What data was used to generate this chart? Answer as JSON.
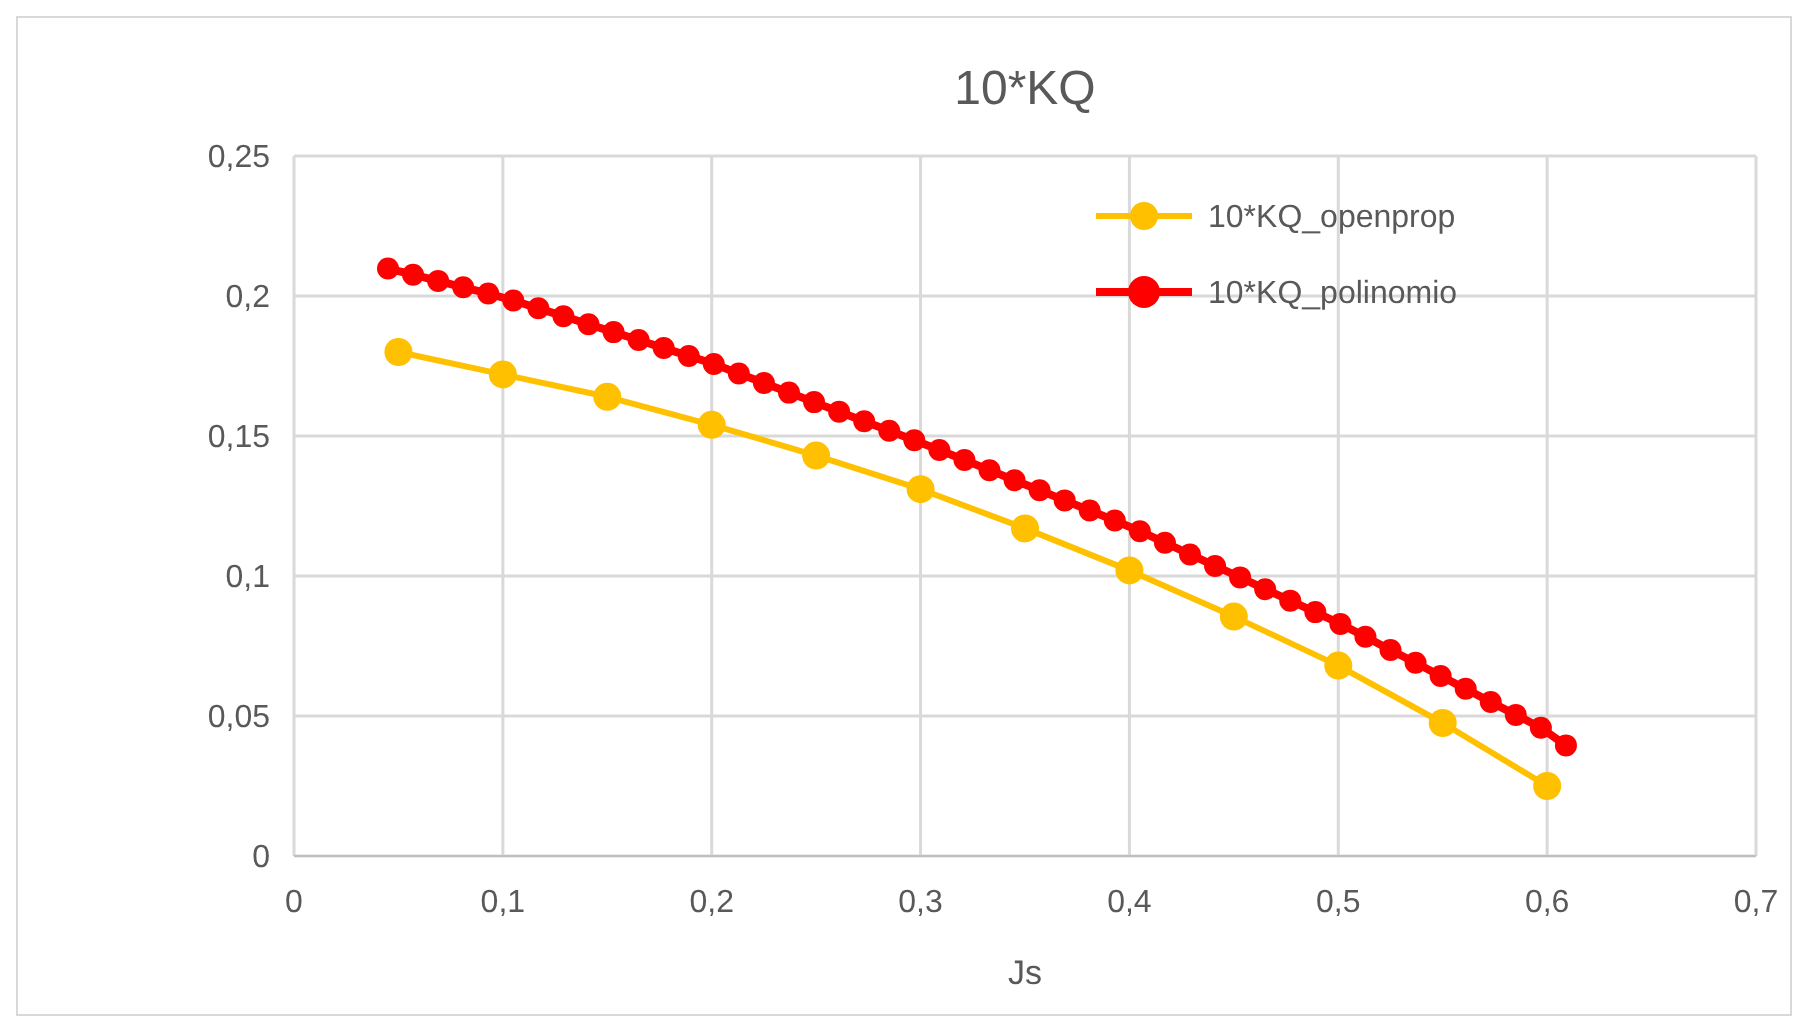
{
  "chart_data": {
    "type": "line",
    "title": "10*KQ",
    "xlabel": "Js",
    "xlim": [
      0,
      0.7
    ],
    "ylim": [
      0,
      0.25
    ],
    "xticks": [
      0,
      {
        "value": 0.1,
        "label": "0,1"
      },
      {
        "value": 0.2,
        "label": "0,2"
      },
      {
        "value": 0.3,
        "label": "0,3"
      },
      {
        "value": 0.4,
        "label": "0,4"
      },
      {
        "value": 0.5,
        "label": "0,5"
      },
      {
        "value": 0.6,
        "label": "0,6"
      },
      {
        "value": 0.7,
        "label": "0,7"
      }
    ],
    "yticks": [
      0,
      {
        "value": 0.05,
        "label": "0,05"
      },
      {
        "value": 0.1,
        "label": "0,1"
      },
      {
        "value": 0.15,
        "label": "0,15"
      },
      {
        "value": 0.2,
        "label": "0,2"
      },
      {
        "value": 0.25,
        "label": "0,25"
      }
    ],
    "grid": true,
    "legend": "top right",
    "marker": "circle",
    "line_style": "solid",
    "series": [
      {
        "name": "10*KQ_openprop",
        "color": "#ffc000",
        "x": [
          0.05,
          0.1,
          0.15,
          0.2,
          0.25,
          0.3,
          0.35,
          0.4,
          0.45,
          0.5,
          0.55,
          0.6
        ],
        "values": [
          0.18,
          0.172,
          0.164,
          0.154,
          0.143,
          0.131,
          0.117,
          0.102,
          0.0855,
          0.068,
          0.0475,
          0.025
        ]
      },
      {
        "name": "10*KQ_polinomio",
        "color": "#ff0000",
        "x": [
          0.045,
          0.057,
          0.069,
          0.081,
          0.093,
          0.105,
          0.117,
          0.129,
          0.141,
          0.153,
          0.165,
          0.177,
          0.189,
          0.201,
          0.213,
          0.225,
          0.237,
          0.249,
          0.261,
          0.273,
          0.285,
          0.297,
          0.309,
          0.321,
          0.333,
          0.345,
          0.357,
          0.369,
          0.381,
          0.393,
          0.405,
          0.417,
          0.429,
          0.441,
          0.453,
          0.465,
          0.477,
          0.489,
          0.501,
          0.513,
          0.525,
          0.537,
          0.549,
          0.561,
          0.573,
          0.585,
          0.597,
          0.609
        ],
        "values": [
          0.2098,
          0.2076,
          0.2054,
          0.2031,
          0.2009,
          0.1984,
          0.1956,
          0.1928,
          0.1899,
          0.1871,
          0.1843,
          0.1814,
          0.1786,
          0.1757,
          0.1723,
          0.1689,
          0.1655,
          0.1621,
          0.1587,
          0.1553,
          0.1519,
          0.1485,
          0.145,
          0.1414,
          0.1378,
          0.1342,
          0.1306,
          0.127,
          0.1234,
          0.1198,
          0.116,
          0.1119,
          0.1077,
          0.1036,
          0.0995,
          0.0953,
          0.0912,
          0.0871,
          0.0829,
          0.0783,
          0.0736,
          0.069,
          0.0643,
          0.0597,
          0.055,
          0.0504,
          0.0458,
          0.0395
        ]
      }
    ]
  }
}
